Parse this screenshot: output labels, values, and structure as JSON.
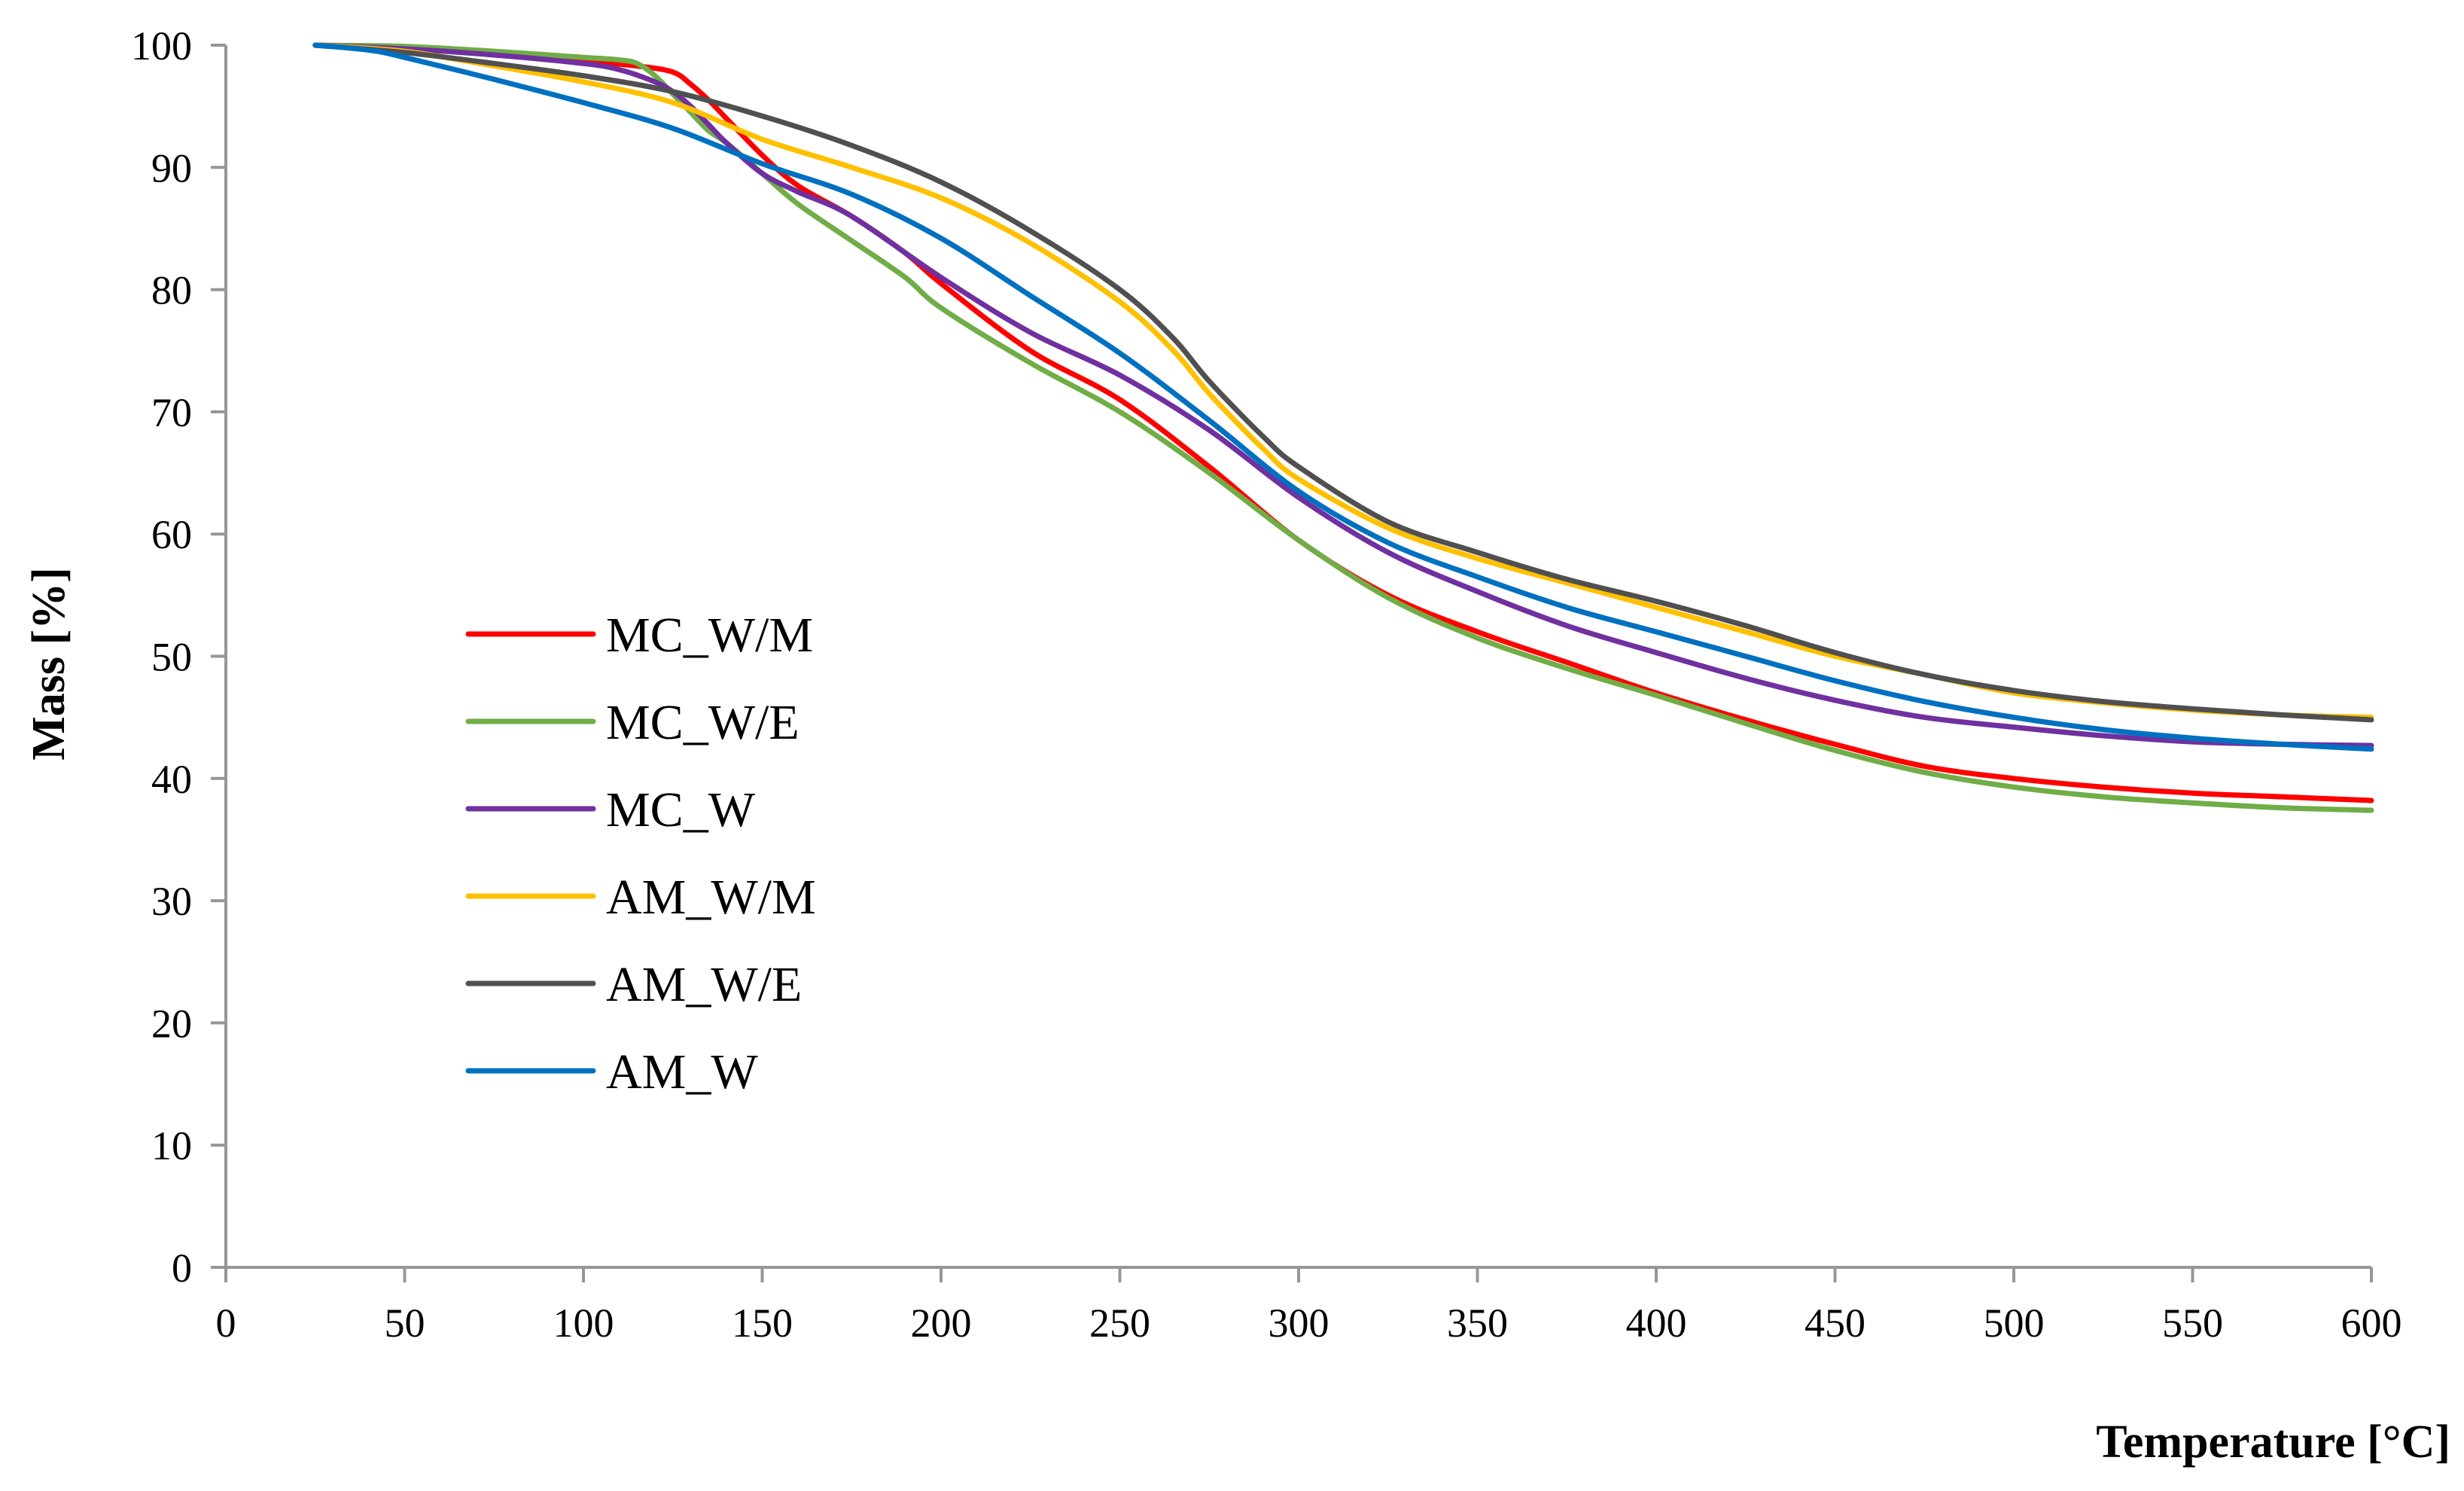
{
  "chart_data": {
    "type": "line",
    "title": "",
    "xlabel": "Temperature [°C]",
    "ylabel": "Mass [%]",
    "xlim": [
      0,
      600
    ],
    "ylim": [
      0,
      100
    ],
    "x_ticks": [
      0,
      50,
      100,
      150,
      200,
      250,
      300,
      350,
      400,
      450,
      500,
      550,
      600
    ],
    "y_ticks": [
      0,
      10,
      20,
      30,
      40,
      50,
      60,
      70,
      80,
      90,
      100
    ],
    "grid": false,
    "legend_position": "left-center",
    "series": [
      {
        "name": "MC_W/M",
        "color": "#ff0000",
        "x": [
          25,
          50,
          75,
          100,
          115,
          125,
          130,
          135,
          140,
          150,
          160,
          175,
          190,
          200,
          225,
          250,
          275,
          300,
          325,
          350,
          375,
          400,
          425,
          450,
          475,
          500,
          525,
          550,
          575,
          600
        ],
        "y": [
          100,
          99.8,
          99.3,
          98.7,
          98.3,
          97.8,
          96.8,
          95.5,
          94,
          91,
          88.5,
          86,
          83,
          80.5,
          75,
          71,
          65.5,
          59.5,
          55,
          52,
          49.5,
          47,
          44.8,
          42.8,
          41,
          40,
          39.3,
          38.8,
          38.5,
          38.2
        ]
      },
      {
        "name": "MC_W/E",
        "color": "#70ad47",
        "x": [
          25,
          50,
          75,
          100,
          110,
          115,
          120,
          125,
          130,
          135,
          140,
          150,
          160,
          175,
          190,
          200,
          225,
          250,
          275,
          300,
          325,
          350,
          375,
          400,
          425,
          450,
          475,
          500,
          525,
          550,
          575,
          600
        ],
        "y": [
          100,
          99.9,
          99.5,
          99,
          98.8,
          98.5,
          97.5,
          96,
          94.5,
          93,
          92,
          89.5,
          87,
          84,
          81,
          78.5,
          74,
          70,
          65,
          59.5,
          54.8,
          51.5,
          49,
          46.8,
          44.5,
          42.3,
          40.5,
          39.3,
          38.5,
          38,
          37.6,
          37.4
        ]
      },
      {
        "name": "MC_W",
        "color": "#7030a0",
        "x": [
          25,
          50,
          75,
          100,
          110,
          120,
          125,
          130,
          135,
          140,
          150,
          160,
          175,
          200,
          225,
          250,
          275,
          300,
          325,
          350,
          375,
          400,
          425,
          450,
          475,
          500,
          525,
          550,
          575,
          600
        ],
        "y": [
          100,
          99.7,
          99.2,
          98.5,
          98,
          97,
          96.2,
          95,
          93.5,
          92,
          89.5,
          88,
          86,
          81,
          76.5,
          73,
          68.5,
          63,
          58.5,
          55.3,
          52.5,
          50.3,
          48.2,
          46.4,
          45,
          44.2,
          43.5,
          43,
          42.8,
          42.7
        ]
      },
      {
        "name": "AM_W/M",
        "color": "#ffc000",
        "x": [
          25,
          50,
          75,
          100,
          125,
          150,
          175,
          200,
          225,
          250,
          265,
          275,
          290,
          300,
          325,
          350,
          375,
          400,
          425,
          450,
          475,
          500,
          525,
          550,
          575,
          600
        ],
        "y": [
          100,
          99.5,
          98.3,
          97,
          95.3,
          92.3,
          90,
          87.5,
          83.8,
          79,
          75,
          71.5,
          67,
          64.5,
          60.5,
          58,
          56,
          54,
          52,
          50,
          48.5,
          47,
          46.2,
          45.6,
          45.2,
          45
        ]
      },
      {
        "name": "AM_W/E",
        "color": "#505050",
        "x": [
          25,
          50,
          75,
          100,
          125,
          150,
          175,
          200,
          225,
          250,
          265,
          275,
          290,
          300,
          325,
          350,
          375,
          400,
          425,
          450,
          475,
          500,
          525,
          550,
          575,
          600
        ],
        "y": [
          100,
          99.4,
          98.5,
          97.5,
          96.2,
          94.2,
          91.8,
          88.8,
          84.8,
          80,
          76,
          72.5,
          68,
          65.5,
          61,
          58.5,
          56.3,
          54.5,
          52.5,
          50.3,
          48.5,
          47.2,
          46.3,
          45.7,
          45.2,
          44.8
        ]
      },
      {
        "name": "AM_W",
        "color": "#0070c0",
        "x": [
          25,
          40,
          50,
          75,
          100,
          125,
          150,
          175,
          200,
          225,
          250,
          275,
          300,
          325,
          350,
          375,
          400,
          425,
          450,
          475,
          500,
          525,
          550,
          575,
          600
        ],
        "y": [
          100,
          99.6,
          99,
          97.2,
          95.3,
          93.2,
          90.3,
          87.8,
          84.2,
          79.5,
          74.8,
          69.3,
          63.5,
          59.3,
          56.5,
          54,
          52,
          50,
          48,
          46.3,
          45,
          44,
          43.3,
          42.8,
          42.4
        ]
      }
    ]
  }
}
